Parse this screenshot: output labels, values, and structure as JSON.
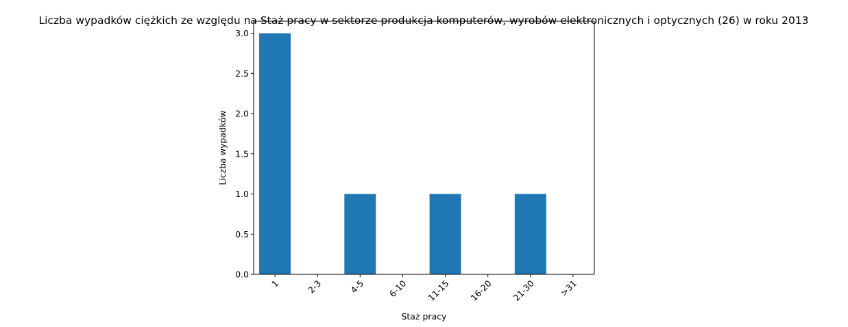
{
  "chart_data": {
    "type": "bar",
    "title": "Liczba wypadków ciężkich ze względu na Staż pracy w sektorze produkcja komputerów, wyrobów elektronicznych i optycznych (26)  w roku 2013",
    "xlabel": "Staż pracy",
    "ylabel": "Liczba wypadków",
    "categories": [
      "1",
      "2-3",
      "4-5",
      "6-10",
      "11-15",
      "16-20",
      "21-30",
      ">31"
    ],
    "values": [
      3,
      0,
      1,
      0,
      1,
      0,
      1,
      0
    ],
    "ylim": [
      0,
      3.15
    ],
    "yticks": [
      0.0,
      0.5,
      1.0,
      1.5,
      2.0,
      2.5,
      3.0
    ],
    "ytick_labels": [
      "0.0",
      "0.5",
      "1.0",
      "1.5",
      "2.0",
      "2.5",
      "3.0"
    ],
    "bar_color": "#1f77b4",
    "grid": false,
    "legend": "none"
  }
}
